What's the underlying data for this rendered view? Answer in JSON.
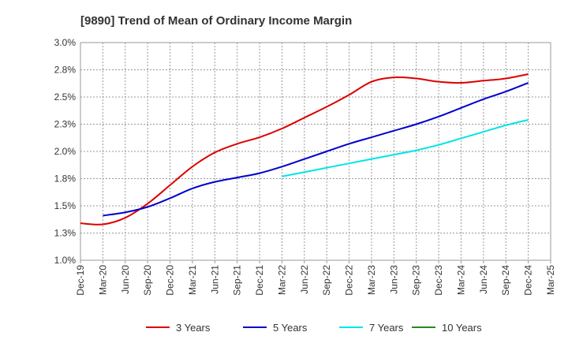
{
  "chart_data": {
    "type": "line",
    "title": "[9890]  Trend of Mean of Ordinary Income Margin",
    "xlabel": "",
    "ylabel": "",
    "x": [
      "Dec-19",
      "Mar-20",
      "Jun-20",
      "Sep-20",
      "Dec-20",
      "Mar-21",
      "Jun-21",
      "Sep-21",
      "Dec-21",
      "Mar-22",
      "Jun-22",
      "Sep-22",
      "Dec-22",
      "Mar-23",
      "Jun-23",
      "Sep-23",
      "Dec-23",
      "Mar-24",
      "Jun-24",
      "Sep-24",
      "Dec-24",
      "Mar-25"
    ],
    "y_tick_labels": [
      "1.0%",
      "1.3%",
      "1.5%",
      "1.8%",
      "2.0%",
      "2.3%",
      "2.5%",
      "2.8%",
      "3.0%"
    ],
    "y_ticks": [
      1.0,
      1.25,
      1.5,
      1.75,
      2.0,
      2.25,
      2.5,
      2.75,
      3.0
    ],
    "ylim": [
      1.0,
      3.0
    ],
    "grid": true,
    "legend_position": "bottom",
    "series": [
      {
        "name": "3 Years",
        "color": "#dd0000",
        "values": [
          1.34,
          1.33,
          1.39,
          1.52,
          1.69,
          1.86,
          1.99,
          2.07,
          2.13,
          2.21,
          2.31,
          2.41,
          2.52,
          2.64,
          2.68,
          2.67,
          2.64,
          2.63,
          2.65,
          2.67,
          2.71,
          null
        ]
      },
      {
        "name": "5 Years",
        "color": "#0000cc",
        "values": [
          null,
          1.41,
          1.44,
          1.49,
          1.57,
          1.66,
          1.72,
          1.76,
          1.8,
          1.86,
          1.93,
          2.0,
          2.07,
          2.13,
          2.19,
          2.25,
          2.32,
          2.4,
          2.48,
          2.55,
          2.63,
          null
        ]
      },
      {
        "name": "7 Years",
        "color": "#00e5e5",
        "values": [
          null,
          null,
          null,
          null,
          null,
          null,
          null,
          null,
          null,
          1.77,
          1.81,
          1.85,
          1.89,
          1.93,
          1.97,
          2.01,
          2.06,
          2.12,
          2.18,
          2.24,
          2.29,
          null
        ]
      },
      {
        "name": "10 Years",
        "color": "#228b22",
        "values": [
          null,
          null,
          null,
          null,
          null,
          null,
          null,
          null,
          null,
          null,
          null,
          null,
          null,
          null,
          null,
          null,
          null,
          null,
          null,
          null,
          null,
          null
        ]
      }
    ]
  }
}
